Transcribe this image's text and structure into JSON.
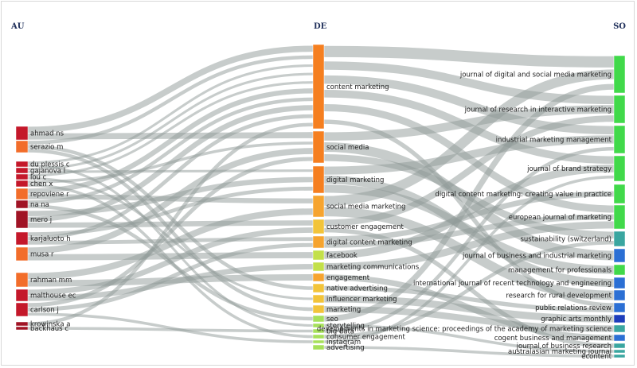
{
  "columns": [
    {
      "key": "AU",
      "label": "AU"
    },
    {
      "key": "DE",
      "label": "DE"
    },
    {
      "key": "SO",
      "label": "SO"
    }
  ],
  "colors": {
    "au_red": "#c4182a",
    "au_dark": "#a01425",
    "au_orange": "#f26d2a",
    "de_orange": "#f57f20",
    "de_amber": "#f6a42f",
    "de_yellow": "#f2c43a",
    "de_lime": "#c3e04a",
    "de_green": "#a6e05a",
    "so_green": "#41d94a",
    "so_teal": "#3aa6a0",
    "so_blue": "#2b6fd4",
    "so_navy": "#1d3dbb",
    "link": "#8f9a97"
  },
  "chart_data": {
    "type": "sankey",
    "nodes": {
      "AU": [
        "ahmad ns",
        "serazio m",
        "du plessis c",
        "gajanova l",
        "lou c",
        "chen x",
        "repoviene r",
        "na na",
        "mero j",
        "karjaluoto h",
        "musa r",
        "rahman mm",
        "malthouse ec",
        "carlson j",
        "krowinska a",
        "backhaus c"
      ],
      "DE": [
        "content marketing",
        "social media",
        "digital marketing",
        "social media marketing",
        "customer engagement",
        "digital content marketing",
        "facebook",
        "marketing communications",
        "engagement",
        "native advertising",
        "influencer marketing",
        "marketing",
        "seo",
        "storytelling",
        "big data",
        "consumer engagement",
        "instagram",
        "advertising"
      ],
      "SO": [
        "journal of digital and social media marketing",
        "journal of research in interactive marketing",
        "industrial marketing management",
        "journal of brand strategy",
        "digital content marketing: creating value in practice",
        "european journal of marketing",
        "sustainability (switzerland)",
        "journal of business and industrial marketing",
        "management for professionals",
        "international journal of recent technology and engineering",
        "research for rural development",
        "public relations review",
        "graphic arts monthly",
        "developments in marketing science: proceedings of the academy of marketing science",
        "cogent business and management",
        "journal of business research",
        "australasian marketing journal",
        "econtent"
      ]
    },
    "links_au_de": [
      [
        "ahmad ns",
        "content marketing"
      ],
      [
        "ahmad ns",
        "social media"
      ],
      [
        "serazio m",
        "content marketing"
      ],
      [
        "serazio m",
        "native advertising"
      ],
      [
        "serazio m",
        "marketing"
      ],
      [
        "du plessis c",
        "content marketing"
      ],
      [
        "du plessis c",
        "storytelling"
      ],
      [
        "gajanova l",
        "content marketing"
      ],
      [
        "gajanova l",
        "digital marketing"
      ],
      [
        "lou c",
        "content marketing"
      ],
      [
        "lou c",
        "influencer marketing"
      ],
      [
        "chen x",
        "social media"
      ],
      [
        "chen x",
        "consumer engagement"
      ],
      [
        "repoviene r",
        "content marketing"
      ],
      [
        "repoviene r",
        "social media marketing"
      ],
      [
        "na na",
        "content marketing"
      ],
      [
        "na na",
        "seo"
      ],
      [
        "mero j",
        "digital marketing"
      ],
      [
        "mero j",
        "content marketing"
      ],
      [
        "mero j",
        "customer engagement"
      ],
      [
        "karjaluoto h",
        "digital marketing"
      ],
      [
        "karjaluoto h",
        "content marketing"
      ],
      [
        "karjaluoto h",
        "digital content marketing"
      ],
      [
        "musa r",
        "social media"
      ],
      [
        "musa r",
        "facebook"
      ],
      [
        "rahman mm",
        "social media marketing"
      ],
      [
        "rahman mm",
        "engagement"
      ],
      [
        "malthouse ec",
        "customer engagement"
      ],
      [
        "malthouse ec",
        "marketing communications"
      ],
      [
        "carlson j",
        "social media"
      ],
      [
        "carlson j",
        "digital content marketing"
      ],
      [
        "carlson j",
        "instagram"
      ],
      [
        "krowinska a",
        "content marketing"
      ],
      [
        "backhaus c",
        "big data"
      ]
    ],
    "links_de_so": [
      [
        "content marketing",
        "journal of digital and social media marketing"
      ],
      [
        "content marketing",
        "journal of research in interactive marketing"
      ],
      [
        "content marketing",
        "industrial marketing management"
      ],
      [
        "content marketing",
        "journal of brand strategy"
      ],
      [
        "content marketing",
        "european journal of marketing"
      ],
      [
        "content marketing",
        "public relations review"
      ],
      [
        "social media",
        "journal of research in interactive marketing"
      ],
      [
        "social media",
        "journal of business and industrial marketing"
      ],
      [
        "social media",
        "sustainability (switzerland)"
      ],
      [
        "digital marketing",
        "industrial marketing management"
      ],
      [
        "digital marketing",
        "international journal of recent technology and engineering"
      ],
      [
        "digital marketing",
        "management for professionals"
      ],
      [
        "social media marketing",
        "journal of digital and social media marketing"
      ],
      [
        "social media marketing",
        "research for rural development"
      ],
      [
        "customer engagement",
        "journal of research in interactive marketing"
      ],
      [
        "customer engagement",
        "journal of business research"
      ],
      [
        "digital content marketing",
        "digital content marketing: creating value in practice"
      ],
      [
        "digital content marketing",
        "european journal of marketing"
      ],
      [
        "facebook",
        "journal of brand strategy"
      ],
      [
        "marketing communications",
        "european journal of marketing"
      ],
      [
        "engagement",
        "cogent business and management"
      ],
      [
        "native advertising",
        "public relations review"
      ],
      [
        "influencer marketing",
        "graphic arts monthly"
      ],
      [
        "marketing",
        "developments in marketing science: proceedings of the academy of marketing science"
      ],
      [
        "seo",
        "journal of digital and social media marketing"
      ],
      [
        "storytelling",
        "australasian marketing journal"
      ],
      [
        "big data",
        "industrial marketing management"
      ],
      [
        "consumer engagement",
        "sustainability (switzerland)"
      ],
      [
        "instagram",
        "journal of brand strategy"
      ],
      [
        "advertising",
        "econtent"
      ]
    ]
  }
}
